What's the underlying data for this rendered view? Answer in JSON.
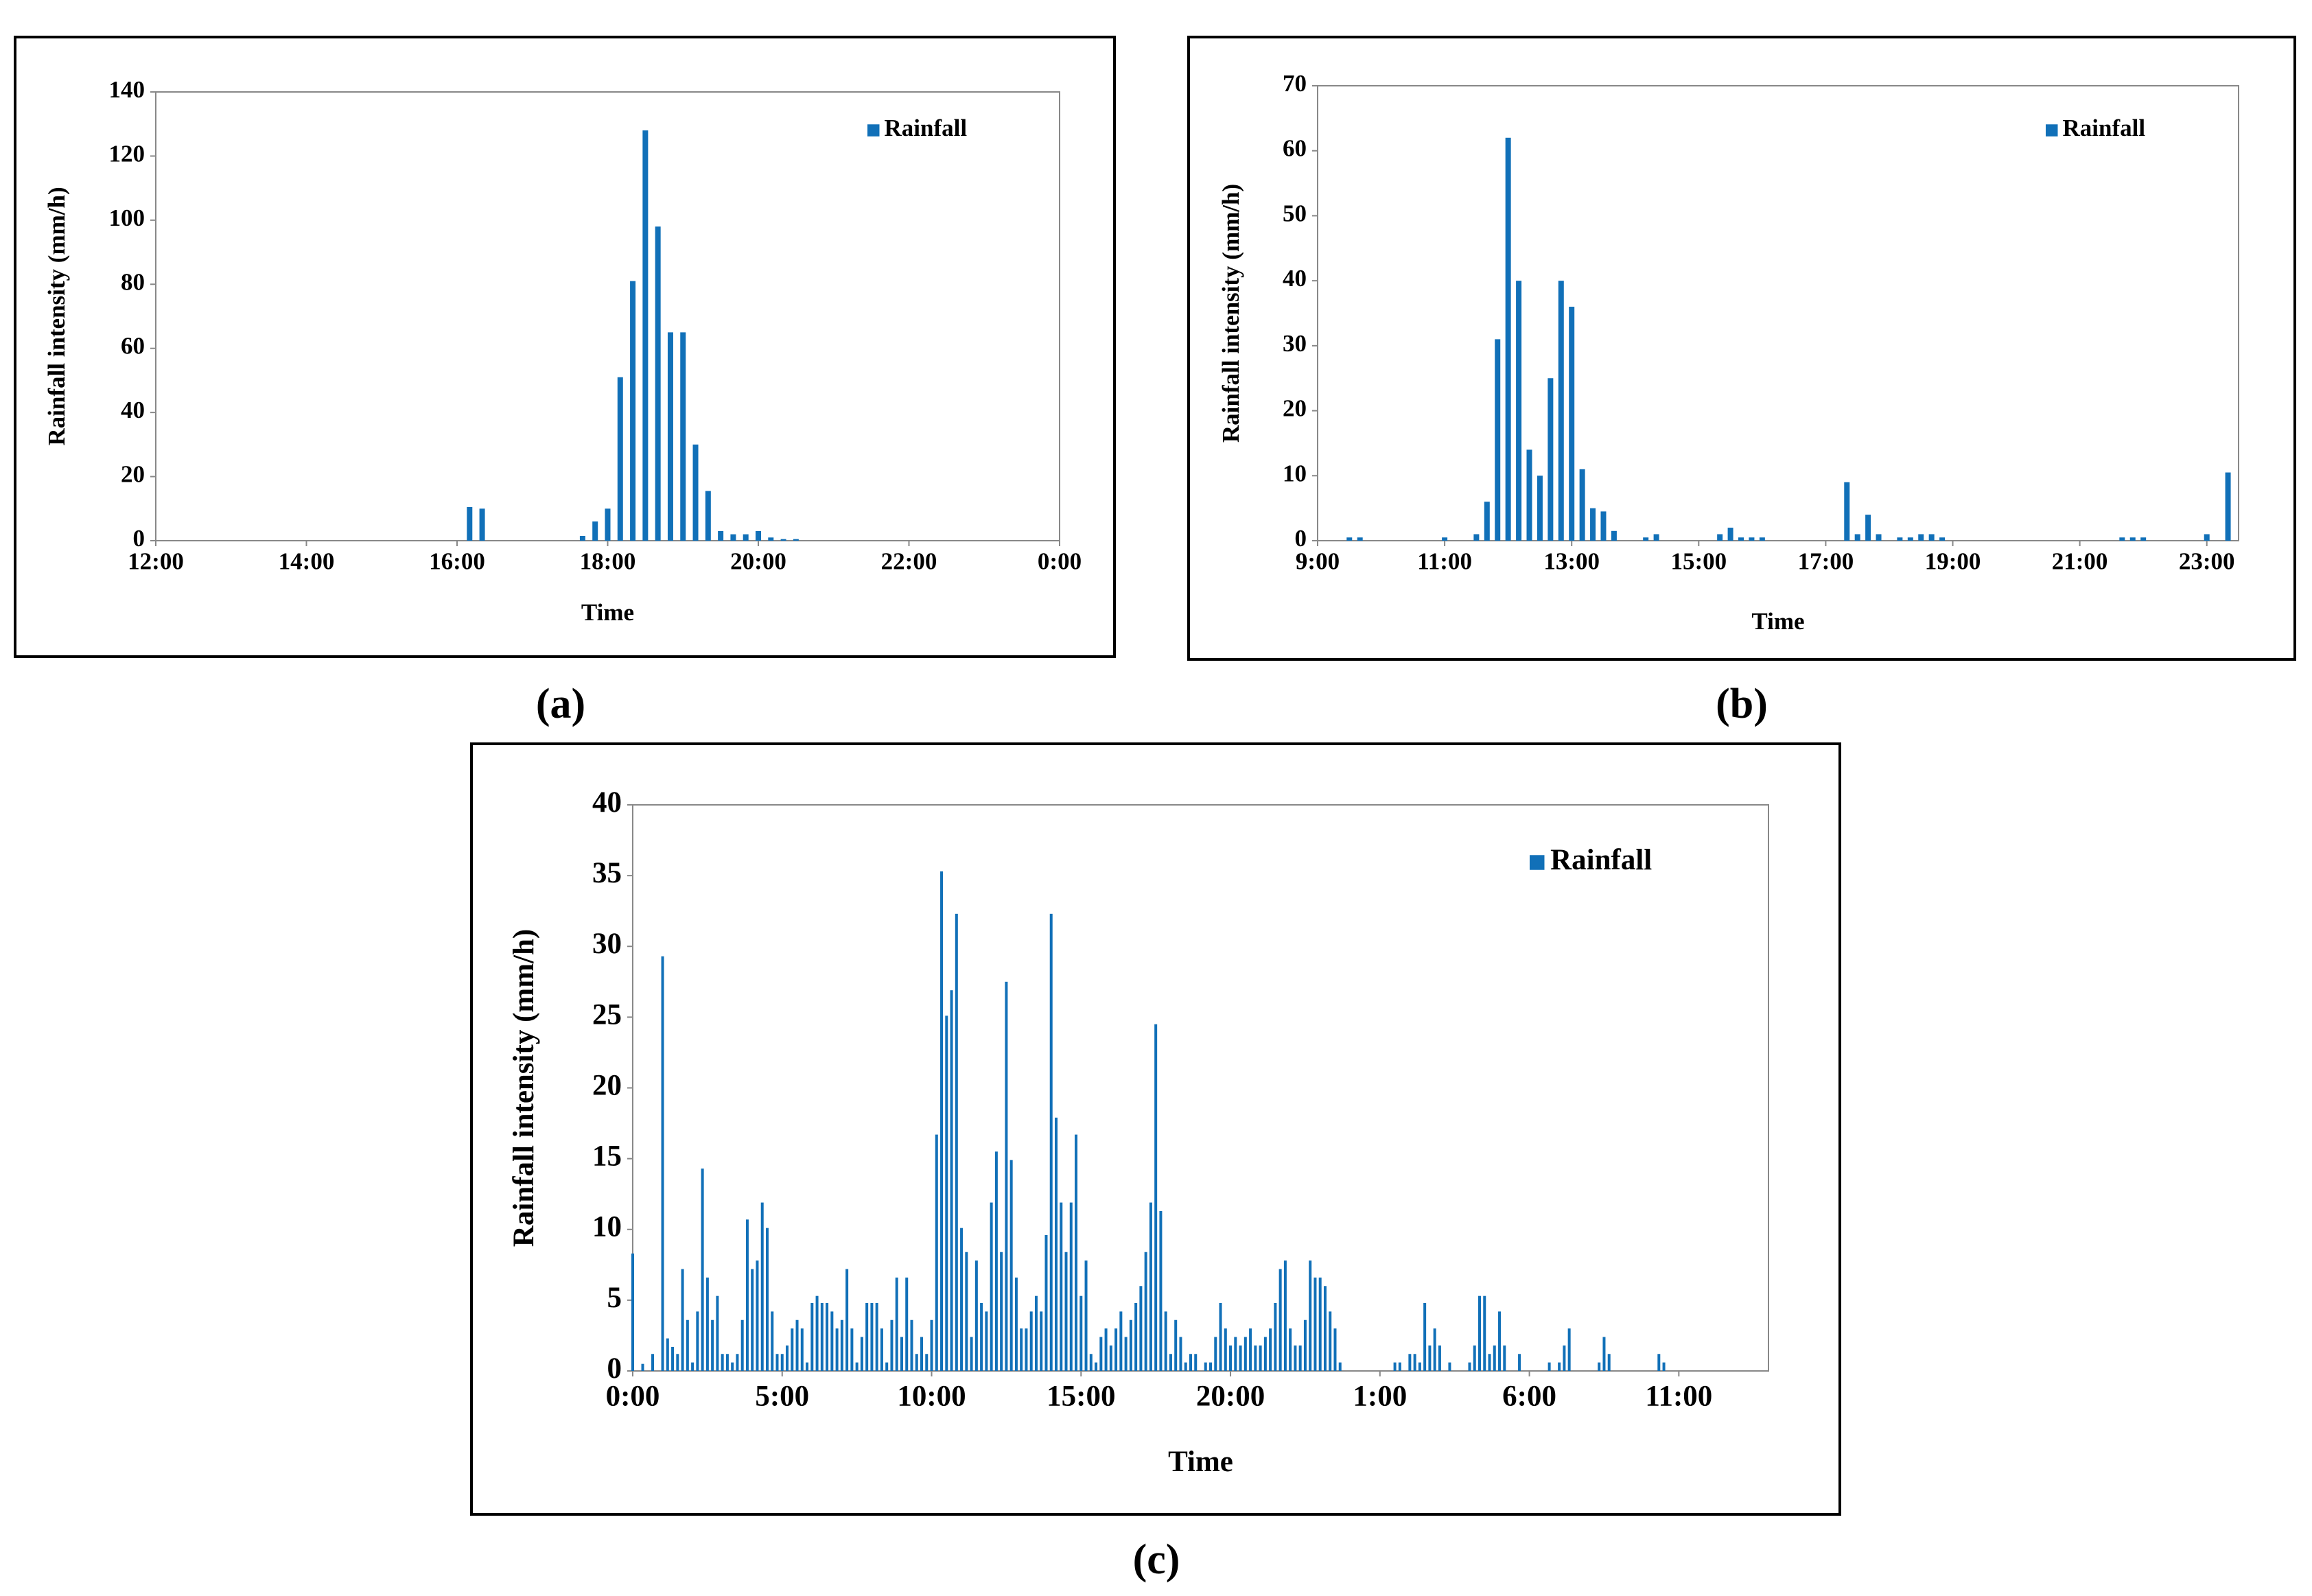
{
  "chart_data": [
    {
      "type": "bar",
      "caption": "(a)",
      "xlabel": "Time",
      "ylabel": "Rainfall intensity (mm/h)",
      "x": [
        970,
        980,
        1060,
        1070,
        1080,
        1090,
        1100,
        1110,
        1120,
        1130,
        1140,
        1150,
        1160,
        1170,
        1180,
        1190,
        1200,
        1210,
        1220,
        1230
      ],
      "series": [
        {
          "name": "Rainfall",
          "color": "#1170b8",
          "values": [
            10.5,
            10,
            1.5,
            6,
            10,
            51,
            81,
            128,
            98,
            65,
            65,
            30,
            15.5,
            3,
            2,
            2,
            3,
            1,
            0.5,
            0.5
          ]
        }
      ],
      "xlim": [
        720,
        1440
      ],
      "xticks": [
        {
          "value": 720,
          "label": "12:00"
        },
        {
          "value": 840,
          "label": "14:00"
        },
        {
          "value": 960,
          "label": "16:00"
        },
        {
          "value": 1080,
          "label": "18:00"
        },
        {
          "value": 1200,
          "label": "20:00"
        },
        {
          "value": 1320,
          "label": "22:00"
        },
        {
          "value": 1440,
          "label": "0:00"
        }
      ],
      "ylim": [
        0,
        140
      ],
      "yticks": [
        0,
        20,
        40,
        60,
        80,
        100,
        120,
        140
      ],
      "legend": "upper right"
    },
    {
      "type": "bar",
      "caption": "(b)",
      "xlabel": "Time",
      "ylabel": "Rainfall intensity (mm/h)",
      "x": [
        570,
        580,
        660,
        690,
        700,
        710,
        720,
        730,
        740,
        750,
        760,
        770,
        780,
        790,
        800,
        810,
        820,
        850,
        860,
        920,
        930,
        940,
        950,
        960,
        1040,
        1050,
        1060,
        1070,
        1090,
        1100,
        1110,
        1120,
        1130,
        1300,
        1310,
        1320,
        1380,
        1400
      ],
      "series": [
        {
          "name": "Rainfall",
          "color": "#1170b8",
          "values": [
            0.5,
            0.5,
            0.5,
            1,
            6,
            31,
            62,
            40,
            14,
            10,
            25,
            40,
            36,
            11,
            5,
            4.5,
            1.5,
            0.5,
            1,
            1,
            2,
            0.5,
            0.5,
            0.5,
            9,
            1,
            4,
            1,
            0.5,
            0.5,
            1,
            1,
            0.5,
            0.5,
            0.5,
            0.5,
            1,
            10.5
          ]
        }
      ],
      "xlim": [
        540,
        1410
      ],
      "xticks": [
        {
          "value": 540,
          "label": "9:00"
        },
        {
          "value": 660,
          "label": "11:00"
        },
        {
          "value": 780,
          "label": "13:00"
        },
        {
          "value": 900,
          "label": "15:00"
        },
        {
          "value": 1020,
          "label": "17:00"
        },
        {
          "value": 1140,
          "label": "19:00"
        },
        {
          "value": 1260,
          "label": "21:00"
        },
        {
          "value": 1380,
          "label": "23:00"
        }
      ],
      "ylim": [
        0,
        70
      ],
      "yticks": [
        0,
        10,
        20,
        30,
        40,
        50,
        60,
        70
      ],
      "legend": "upper right"
    },
    {
      "type": "bar",
      "caption": "(c)",
      "xlabel": "Time",
      "ylabel": "Rainfall intensity (mm/h)",
      "x": [
        0,
        20,
        40,
        60,
        70,
        80,
        90,
        100,
        110,
        120,
        130,
        140,
        150,
        160,
        170,
        180,
        190,
        200,
        210,
        220,
        230,
        240,
        250,
        260,
        270,
        280,
        290,
        300,
        310,
        320,
        330,
        340,
        350,
        360,
        370,
        380,
        390,
        400,
        410,
        420,
        430,
        440,
        450,
        460,
        470,
        480,
        490,
        500,
        510,
        520,
        530,
        540,
        550,
        560,
        570,
        580,
        590,
        600,
        610,
        620,
        630,
        640,
        650,
        660,
        670,
        680,
        690,
        700,
        710,
        720,
        730,
        740,
        750,
        760,
        770,
        780,
        790,
        800,
        810,
        820,
        830,
        840,
        850,
        860,
        870,
        880,
        890,
        900,
        910,
        920,
        930,
        940,
        950,
        960,
        970,
        980,
        990,
        1000,
        1010,
        1020,
        1030,
        1040,
        1050,
        1060,
        1070,
        1080,
        1090,
        1100,
        1110,
        1120,
        1130,
        1150,
        1160,
        1170,
        1180,
        1190,
        1200,
        1210,
        1220,
        1230,
        1240,
        1250,
        1260,
        1270,
        1280,
        1290,
        1300,
        1310,
        1320,
        1330,
        1340,
        1350,
        1360,
        1370,
        1380,
        1390,
        1400,
        1410,
        1420,
        1530,
        1540,
        1560,
        1570,
        1580,
        1590,
        1600,
        1610,
        1620,
        1640,
        1680,
        1690,
        1700,
        1710,
        1720,
        1730,
        1740,
        1750,
        1780,
        1840,
        1860,
        1870,
        1880,
        1940,
        1950,
        1960,
        2060,
        2070
      ],
      "series": [
        {
          "name": "Rainfall",
          "color": "#1170b8",
          "values": [
            8.3,
            0.5,
            1.2,
            29.3,
            2.3,
            1.7,
            1.2,
            7.2,
            3.6,
            0.6,
            4.2,
            14.3,
            6.6,
            3.6,
            5.3,
            1.2,
            1.2,
            0.6,
            1.2,
            3.6,
            10.7,
            7.2,
            7.8,
            11.9,
            10.1,
            4.2,
            1.2,
            1.2,
            1.8,
            3.0,
            3.6,
            3.0,
            0.6,
            4.8,
            5.3,
            4.8,
            4.8,
            4.2,
            3.0,
            3.6,
            7.2,
            3.0,
            0.6,
            2.4,
            4.8,
            4.8,
            4.8,
            3.0,
            0.6,
            3.6,
            6.6,
            2.4,
            6.6,
            3.6,
            1.2,
            2.4,
            1.2,
            3.6,
            16.7,
            35.3,
            25.1,
            26.9,
            32.3,
            10.1,
            8.4,
            2.4,
            7.8,
            4.8,
            4.2,
            11.9,
            15.5,
            8.4,
            27.5,
            14.9,
            6.6,
            3.0,
            3.0,
            4.2,
            5.3,
            4.2,
            9.6,
            32.3,
            17.9,
            11.9,
            8.4,
            11.9,
            16.7,
            5.3,
            7.8,
            1.2,
            0.6,
            2.4,
            3.0,
            1.8,
            3.0,
            4.2,
            2.4,
            3.6,
            4.8,
            6.0,
            8.4,
            11.9,
            24.5,
            11.3,
            4.2,
            1.2,
            3.6,
            2.4,
            0.6,
            1.2,
            1.2,
            0.6,
            0.6,
            2.4,
            4.8,
            3.0,
            1.8,
            2.4,
            1.8,
            2.4,
            3.0,
            1.8,
            1.8,
            2.4,
            3.0,
            4.8,
            7.2,
            7.8,
            3.0,
            1.8,
            1.8,
            3.6,
            7.8,
            6.6,
            6.6,
            6.0,
            4.2,
            3.0,
            0.6,
            0.6,
            0.6,
            1.2,
            1.2,
            0.6,
            4.8,
            1.8,
            3.0,
            1.8,
            0.6,
            0.6,
            1.8,
            5.3,
            5.3,
            1.2,
            1.8,
            4.2,
            1.8,
            1.2,
            0.6,
            0.6,
            1.8,
            3.0,
            0.6,
            2.4,
            1.2,
            1.2,
            0.6
          ]
        }
      ],
      "xlim": [
        0,
        2280
      ],
      "xticks": [
        {
          "value": 0,
          "label": "0:00"
        },
        {
          "value": 300,
          "label": "5:00"
        },
        {
          "value": 600,
          "label": "10:00"
        },
        {
          "value": 900,
          "label": "15:00"
        },
        {
          "value": 1200,
          "label": "20:00"
        },
        {
          "value": 1500,
          "label": "1:00"
        },
        {
          "value": 1800,
          "label": "6:00"
        },
        {
          "value": 2100,
          "label": "11:00"
        }
      ],
      "ylim": [
        0,
        40
      ],
      "yticks": [
        0,
        5,
        10,
        15,
        20,
        25,
        30,
        35,
        40
      ],
      "legend": "upper right"
    }
  ]
}
